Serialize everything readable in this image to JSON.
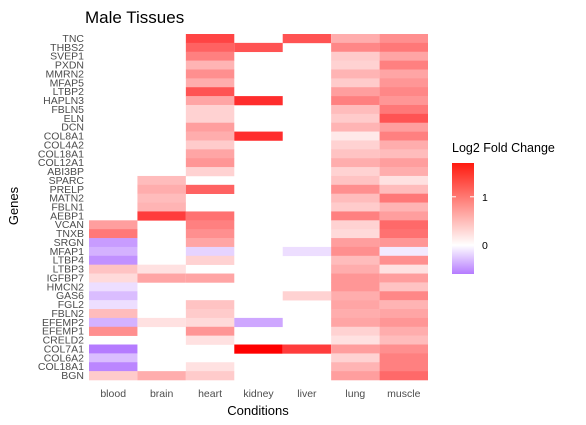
{
  "chart_data": {
    "type": "heatmap",
    "title": "Male Tissues",
    "xlabel": "Conditions",
    "ylabel": "Genes",
    "legend_title": "Log2 Fold Change",
    "legend_ticks": [
      "1",
      "0"
    ],
    "legend_tick_values": [
      1,
      0
    ],
    "color_scale": {
      "low": "#b57bff",
      "mid": "#ffffff",
      "high": "#ff0000",
      "min": -0.6,
      "max": 1.7
    },
    "x": [
      "blood",
      "brain",
      "heart",
      "kidney",
      "liver",
      "lung",
      "muscle"
    ],
    "y": [
      "TNC",
      "THBS2",
      "SVEP1",
      "PXDN",
      "MMRN2",
      "MFAP5",
      "LTBP2",
      "HAPLN3",
      "FBLN5",
      "ELN",
      "DCN",
      "COL8A1",
      "COL4A2",
      "COL18A1",
      "COL12A1",
      "ABI3BP",
      "SPARC",
      "PRELP",
      "MATN2",
      "FBLN1",
      "AEBP1",
      "VCAN",
      "TNXB",
      "SRGN",
      "MFAP1",
      "LTBP4",
      "LTBP3",
      "IGFBP7",
      "HMCN2",
      "GAS6",
      "FGL2",
      "FBLN2",
      "EFEMP2",
      "EFEMP1",
      "CRELD2",
      "COL7A1",
      "COL6A2",
      "COL18A1",
      "BGN"
    ],
    "values": [
      [
        null,
        null,
        1.25,
        null,
        1.15,
        0.55,
        0.75
      ],
      [
        null,
        null,
        1.05,
        1.15,
        null,
        0.8,
        0.9
      ],
      [
        null,
        null,
        0.85,
        null,
        null,
        0.35,
        0.6
      ],
      [
        null,
        null,
        0.5,
        null,
        null,
        0.3,
        0.85
      ],
      [
        null,
        null,
        0.75,
        null,
        null,
        0.5,
        0.6
      ],
      [
        null,
        null,
        0.55,
        null,
        null,
        0.35,
        0.7
      ],
      [
        null,
        null,
        1.15,
        null,
        null,
        0.65,
        0.8
      ],
      [
        null,
        null,
        0.6,
        1.4,
        null,
        0.85,
        0.7
      ],
      [
        null,
        null,
        0.3,
        null,
        null,
        0.45,
        0.9
      ],
      [
        null,
        null,
        0.3,
        null,
        null,
        0.35,
        1.15
      ],
      [
        null,
        null,
        0.65,
        null,
        null,
        0.5,
        0.65
      ],
      [
        null,
        null,
        0.55,
        1.4,
        null,
        0.15,
        0.85
      ],
      [
        null,
        null,
        0.35,
        null,
        null,
        0.3,
        0.55
      ],
      [
        null,
        null,
        0.6,
        null,
        null,
        0.4,
        0.45
      ],
      [
        null,
        null,
        0.7,
        null,
        null,
        0.55,
        0.65
      ],
      [
        null,
        null,
        0.3,
        null,
        null,
        0.3,
        0.55
      ],
      [
        null,
        0.45,
        null,
        null,
        null,
        0.4,
        0.2
      ],
      [
        null,
        0.55,
        1.05,
        null,
        null,
        0.75,
        0.45
      ],
      [
        null,
        0.45,
        null,
        null,
        null,
        0.45,
        0.9
      ],
      [
        null,
        0.5,
        null,
        null,
        null,
        0.35,
        0.5
      ],
      [
        null,
        1.3,
        0.95,
        null,
        null,
        0.85,
        0.65
      ],
      [
        0.65,
        null,
        0.85,
        null,
        null,
        0.3,
        1.0
      ],
      [
        0.9,
        null,
        0.75,
        null,
        null,
        0.25,
        0.95
      ],
      [
        -0.45,
        null,
        0.6,
        null,
        null,
        0.65,
        0.7
      ],
      [
        -0.35,
        null,
        -0.2,
        null,
        -0.15,
        0.75,
        -0.1
      ],
      [
        -0.5,
        null,
        0.3,
        null,
        null,
        0.45,
        0.75
      ],
      [
        0.4,
        0.2,
        null,
        null,
        null,
        0.55,
        0.2
      ],
      [
        0.25,
        0.6,
        0.6,
        null,
        null,
        0.7,
        0.65
      ],
      [
        -0.15,
        null,
        null,
        null,
        null,
        0.7,
        0.4
      ],
      [
        -0.3,
        null,
        null,
        null,
        0.3,
        0.55,
        0.8
      ],
      [
        -0.15,
        null,
        0.4,
        null,
        null,
        0.6,
        0.5
      ],
      [
        0.45,
        null,
        0.35,
        null,
        null,
        0.55,
        0.6
      ],
      [
        -0.35,
        0.2,
        0.25,
        -0.4,
        null,
        0.6,
        0.7
      ],
      [
        0.75,
        null,
        0.7,
        null,
        null,
        0.3,
        0.55
      ],
      [
        null,
        null,
        0.2,
        null,
        null,
        0.2,
        0.45
      ],
      [
        -0.6,
        null,
        null,
        1.7,
        1.3,
        0.65,
        0.75
      ],
      [
        -0.3,
        null,
        null,
        null,
        null,
        0.3,
        0.85
      ],
      [
        -0.55,
        null,
        0.2,
        null,
        null,
        0.5,
        0.85
      ],
      [
        0.35,
        0.55,
        0.35,
        null,
        null,
        0.65,
        1.0
      ]
    ]
  }
}
